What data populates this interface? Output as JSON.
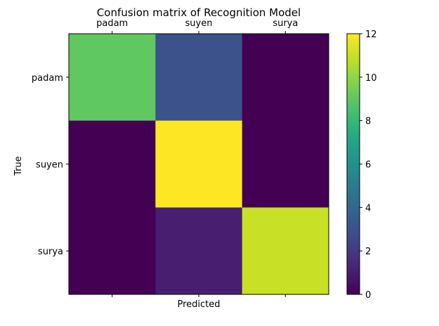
{
  "chart_data": {
    "type": "heatmap",
    "title": "Confusion matrix of Recognition Model",
    "xlabel": "Predicted",
    "ylabel": "True",
    "x_categories": [
      "padam",
      "suyen",
      "surya"
    ],
    "y_categories": [
      "padam",
      "suyen",
      "surya"
    ],
    "values": [
      [
        9,
        3,
        0
      ],
      [
        0,
        12,
        0
      ],
      [
        0,
        1,
        11
      ]
    ],
    "colormap": "viridis",
    "color_range": [
      0,
      12
    ],
    "colorbar_ticks": [
      "0",
      "2",
      "4",
      "6",
      "8",
      "10",
      "12"
    ],
    "x_tick_position": "top",
    "grid": false
  }
}
